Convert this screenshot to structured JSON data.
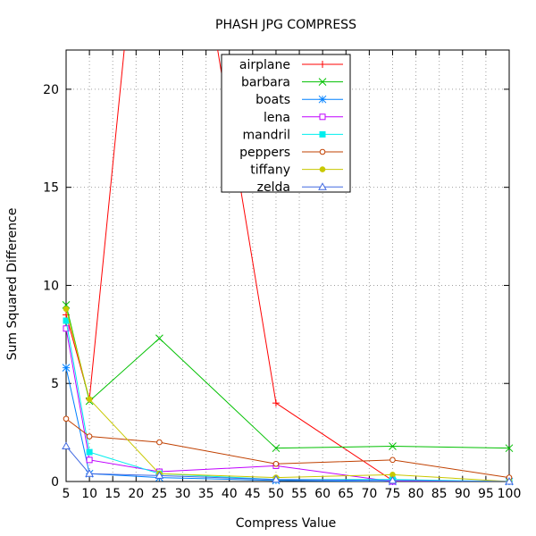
{
  "chart_data": {
    "type": "line",
    "title": "PHASH JPG COMPRESS",
    "xlabel": "Compress Value",
    "ylabel": "Sum Squared Difference",
    "xlim": [
      5,
      100
    ],
    "ylim": [
      0,
      22
    ],
    "x_ticks": [
      5,
      10,
      15,
      20,
      25,
      30,
      35,
      40,
      45,
      50,
      55,
      60,
      65,
      70,
      75,
      80,
      85,
      90,
      95,
      100
    ],
    "y_ticks": [
      0,
      5,
      10,
      15,
      20
    ],
    "grid": true,
    "legend_position": "top-center",
    "series": [
      {
        "name": "airplane",
        "color": "#ff0000",
        "marker": "plus",
        "x": [
          5,
          10,
          25,
          50,
          75,
          100
        ],
        "y": [
          8.5,
          4.2,
          40.0,
          4.0,
          0.05,
          0.0
        ],
        "note_points": "uses x/y below"
      },
      {
        "name": "barbara",
        "color": "#00c000",
        "marker": "cross",
        "x": [
          5,
          10,
          25,
          50,
          75,
          100
        ],
        "y": [
          9.0,
          4.1,
          7.3,
          1.7,
          1.8,
          1.7
        ]
      },
      {
        "name": "boats",
        "color": "#0080ff",
        "marker": "star",
        "x": [
          5,
          10,
          25,
          50,
          75,
          100
        ],
        "y": [
          5.8,
          0.4,
          0.2,
          0.05,
          0.0,
          0.0
        ]
      },
      {
        "name": "lena",
        "color": "#c000ff",
        "marker": "box",
        "x": [
          5,
          10,
          25,
          50,
          75,
          100
        ],
        "y": [
          7.8,
          1.1,
          0.5,
          0.8,
          0.0,
          0.0
        ]
      },
      {
        "name": "mandril",
        "color": "#00eeee",
        "marker": "filled-box",
        "x": [
          5,
          10,
          25,
          50,
          75,
          100
        ],
        "y": [
          8.2,
          1.5,
          0.4,
          0.1,
          0.1,
          0.0
        ]
      },
      {
        "name": "peppers",
        "color": "#c04000",
        "marker": "circle",
        "x": [
          5,
          10,
          25,
          50,
          75,
          100
        ],
        "y": [
          3.2,
          2.3,
          2.0,
          0.9,
          1.1,
          0.2
        ]
      },
      {
        "name": "tiffany",
        "color": "#c8c800",
        "marker": "filled-circle",
        "x": [
          5,
          10,
          25,
          50,
          75,
          100
        ],
        "y": [
          8.8,
          4.2,
          0.4,
          0.2,
          0.35,
          0.0
        ]
      },
      {
        "name": "zelda",
        "color": "#4169e1",
        "marker": "triangle",
        "x": [
          5,
          10,
          25,
          50,
          75,
          100
        ],
        "y": [
          1.8,
          0.4,
          0.3,
          0.1,
          0.05,
          0.0
        ]
      }
    ]
  }
}
